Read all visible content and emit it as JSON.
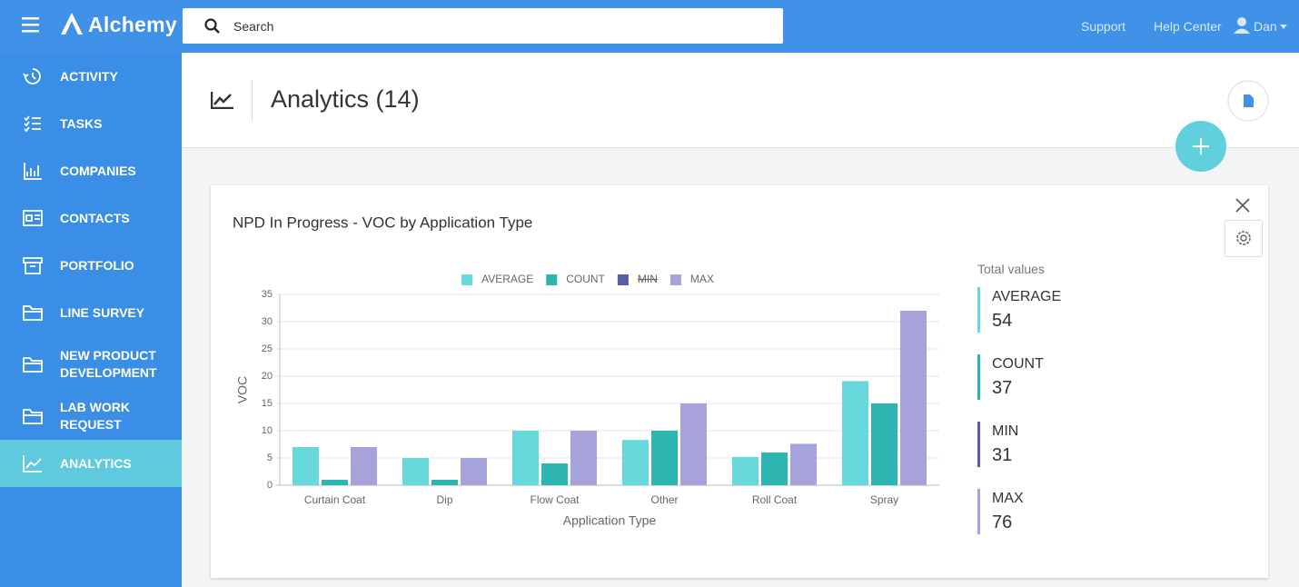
{
  "header": {
    "brand": "Alchemy",
    "search_placeholder": "Search",
    "links": [
      "Support",
      "Help Center"
    ],
    "user": "Dan"
  },
  "sidebar": {
    "items": [
      "ACTIVITY",
      "TASKS",
      "COMPANIES",
      "CONTACTS",
      "PORTFOLIO",
      "LINE SURVEY",
      "NEW PRODUCT DEVELOPMENT",
      "LAB WORK REQUEST",
      "ANALYTICS"
    ],
    "active": 8
  },
  "page": {
    "title": "Analytics (14)"
  },
  "chart_data": {
    "type": "bar",
    "title": "NPD In Progress - VOC by Application Type",
    "categories": [
      "Curtain Coat",
      "Dip",
      "Flow Coat",
      "Other",
      "Roll Coat",
      "Spray"
    ],
    "series": [
      {
        "name": "AVERAGE",
        "color": "#67d9dd",
        "values": [
          7,
          5,
          10,
          8.3,
          5.2,
          19.1
        ]
      },
      {
        "name": "COUNT",
        "color": "#2db5b1",
        "values": [
          1,
          1,
          4,
          10,
          6,
          15
        ]
      },
      {
        "name": "MIN",
        "color": "#5a5ea8",
        "hidden": true
      },
      {
        "name": "MAX",
        "color": "#a5a3da",
        "values": [
          7,
          5,
          10,
          15,
          7.6,
          32
        ]
      }
    ],
    "x_label": "Application Type",
    "y_label": "VOC",
    "ylim": [
      0,
      35
    ],
    "yticks": [
      0,
      5,
      10,
      15,
      20,
      25,
      30,
      35
    ],
    "grid": true,
    "legend": "top"
  },
  "totals": {
    "title": "Total values",
    "items": [
      {
        "name": "AVERAGE",
        "value": 54,
        "color": "#67d9dd"
      },
      {
        "name": "COUNT",
        "value": 37,
        "color": "#2db5b1"
      },
      {
        "name": "MIN",
        "value": 31,
        "color": "#5a5ea8"
      },
      {
        "name": "MAX",
        "value": 76,
        "color": "#a5a3da"
      }
    ]
  }
}
